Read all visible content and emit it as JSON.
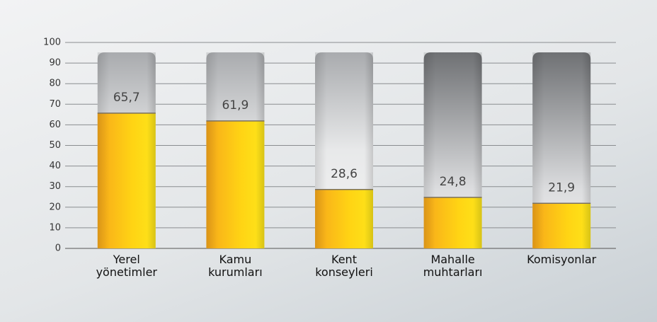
{
  "chart_data": {
    "type": "bar",
    "categories": [
      "Yerel\nyönetimler",
      "Kamu\nkurumları",
      "Kent\nkonseyleri",
      "Mahalle\nmuhtarları",
      "Komisyonlar"
    ],
    "values": [
      65.7,
      61.9,
      28.6,
      24.8,
      21.9
    ],
    "value_labels": [
      "65,7",
      "61,9",
      "28,6",
      "24,8",
      "21,9"
    ],
    "ylim": [
      0,
      100
    ],
    "yticks": [
      0,
      10,
      20,
      30,
      40,
      50,
      60,
      70,
      80,
      90,
      100
    ],
    "grid": true
  }
}
